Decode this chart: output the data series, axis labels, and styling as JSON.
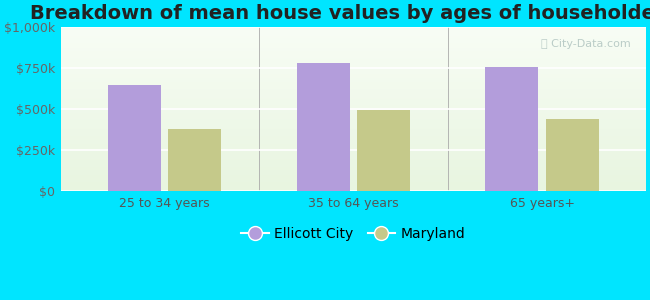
{
  "title": "Breakdown of mean house values by ages of householders",
  "categories": [
    "25 to 34 years",
    "35 to 64 years",
    "65 years+"
  ],
  "ellicott_city": [
    650000,
    780000,
    760000
  ],
  "maryland": [
    380000,
    495000,
    440000
  ],
  "ellicott_city_color": "#b39ddb",
  "maryland_color": "#c5c98a",
  "background_color": "#00e5ff",
  "ylim": [
    0,
    1000000
  ],
  "yticks": [
    0,
    250000,
    500000,
    750000,
    1000000
  ],
  "ytick_labels": [
    "$0",
    "$250k",
    "$500k",
    "$750k",
    "$1,000k"
  ],
  "legend_labels": [
    "Ellicott City",
    "Maryland"
  ],
  "bar_width": 0.28,
  "title_fontsize": 14,
  "tick_fontsize": 9,
  "legend_fontsize": 10,
  "watermark": "City-Data.com"
}
